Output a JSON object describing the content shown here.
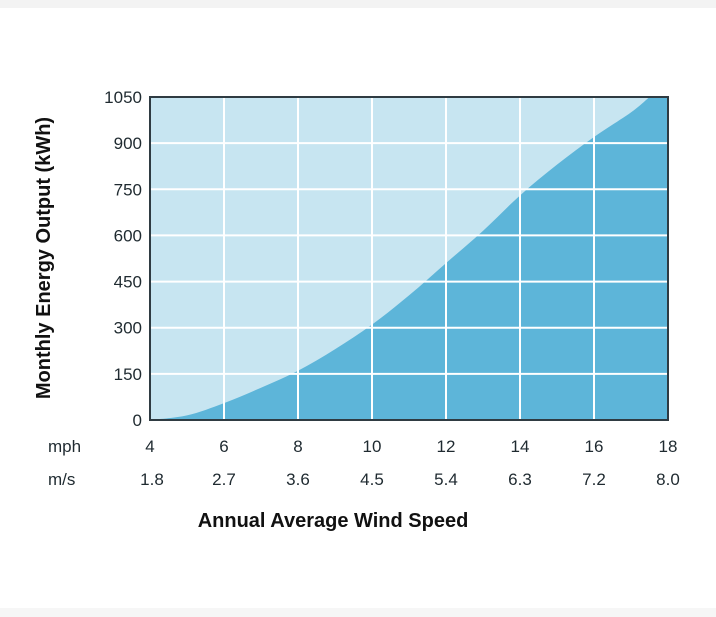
{
  "chart_data": {
    "type": "area",
    "title": "",
    "xlabel": "Annual Average Wind Speed",
    "ylabel": "Monthly Energy Output (kWh)",
    "x_unit_primary": "mph",
    "x_unit_secondary": "m/s",
    "x_ticks_mph": [
      "4",
      "6",
      "8",
      "10",
      "12",
      "14",
      "16",
      "18"
    ],
    "x_ticks_ms": [
      "1.8",
      "2.7",
      "3.6",
      "4.5",
      "5.4",
      "6.3",
      "7.2",
      "8.0"
    ],
    "y_ticks": [
      "0",
      "150",
      "300",
      "450",
      "600",
      "750",
      "900",
      "1050"
    ],
    "xlim": [
      4,
      18
    ],
    "ylim": [
      0,
      1050
    ],
    "grid": true,
    "series": [
      {
        "x": [
          4,
          5,
          6,
          7,
          8,
          9,
          10,
          11,
          12,
          13,
          14,
          15,
          16,
          17,
          17.5
        ],
        "values": [
          0,
          15,
          55,
          105,
          160,
          230,
          310,
          405,
          510,
          615,
          730,
          830,
          920,
          1000,
          1050
        ]
      }
    ],
    "colors": {
      "area_fill": "#5db5d9",
      "plot_background": "#c7e5f1",
      "grid": "#ffffff",
      "frame": "#2f3b42"
    }
  }
}
